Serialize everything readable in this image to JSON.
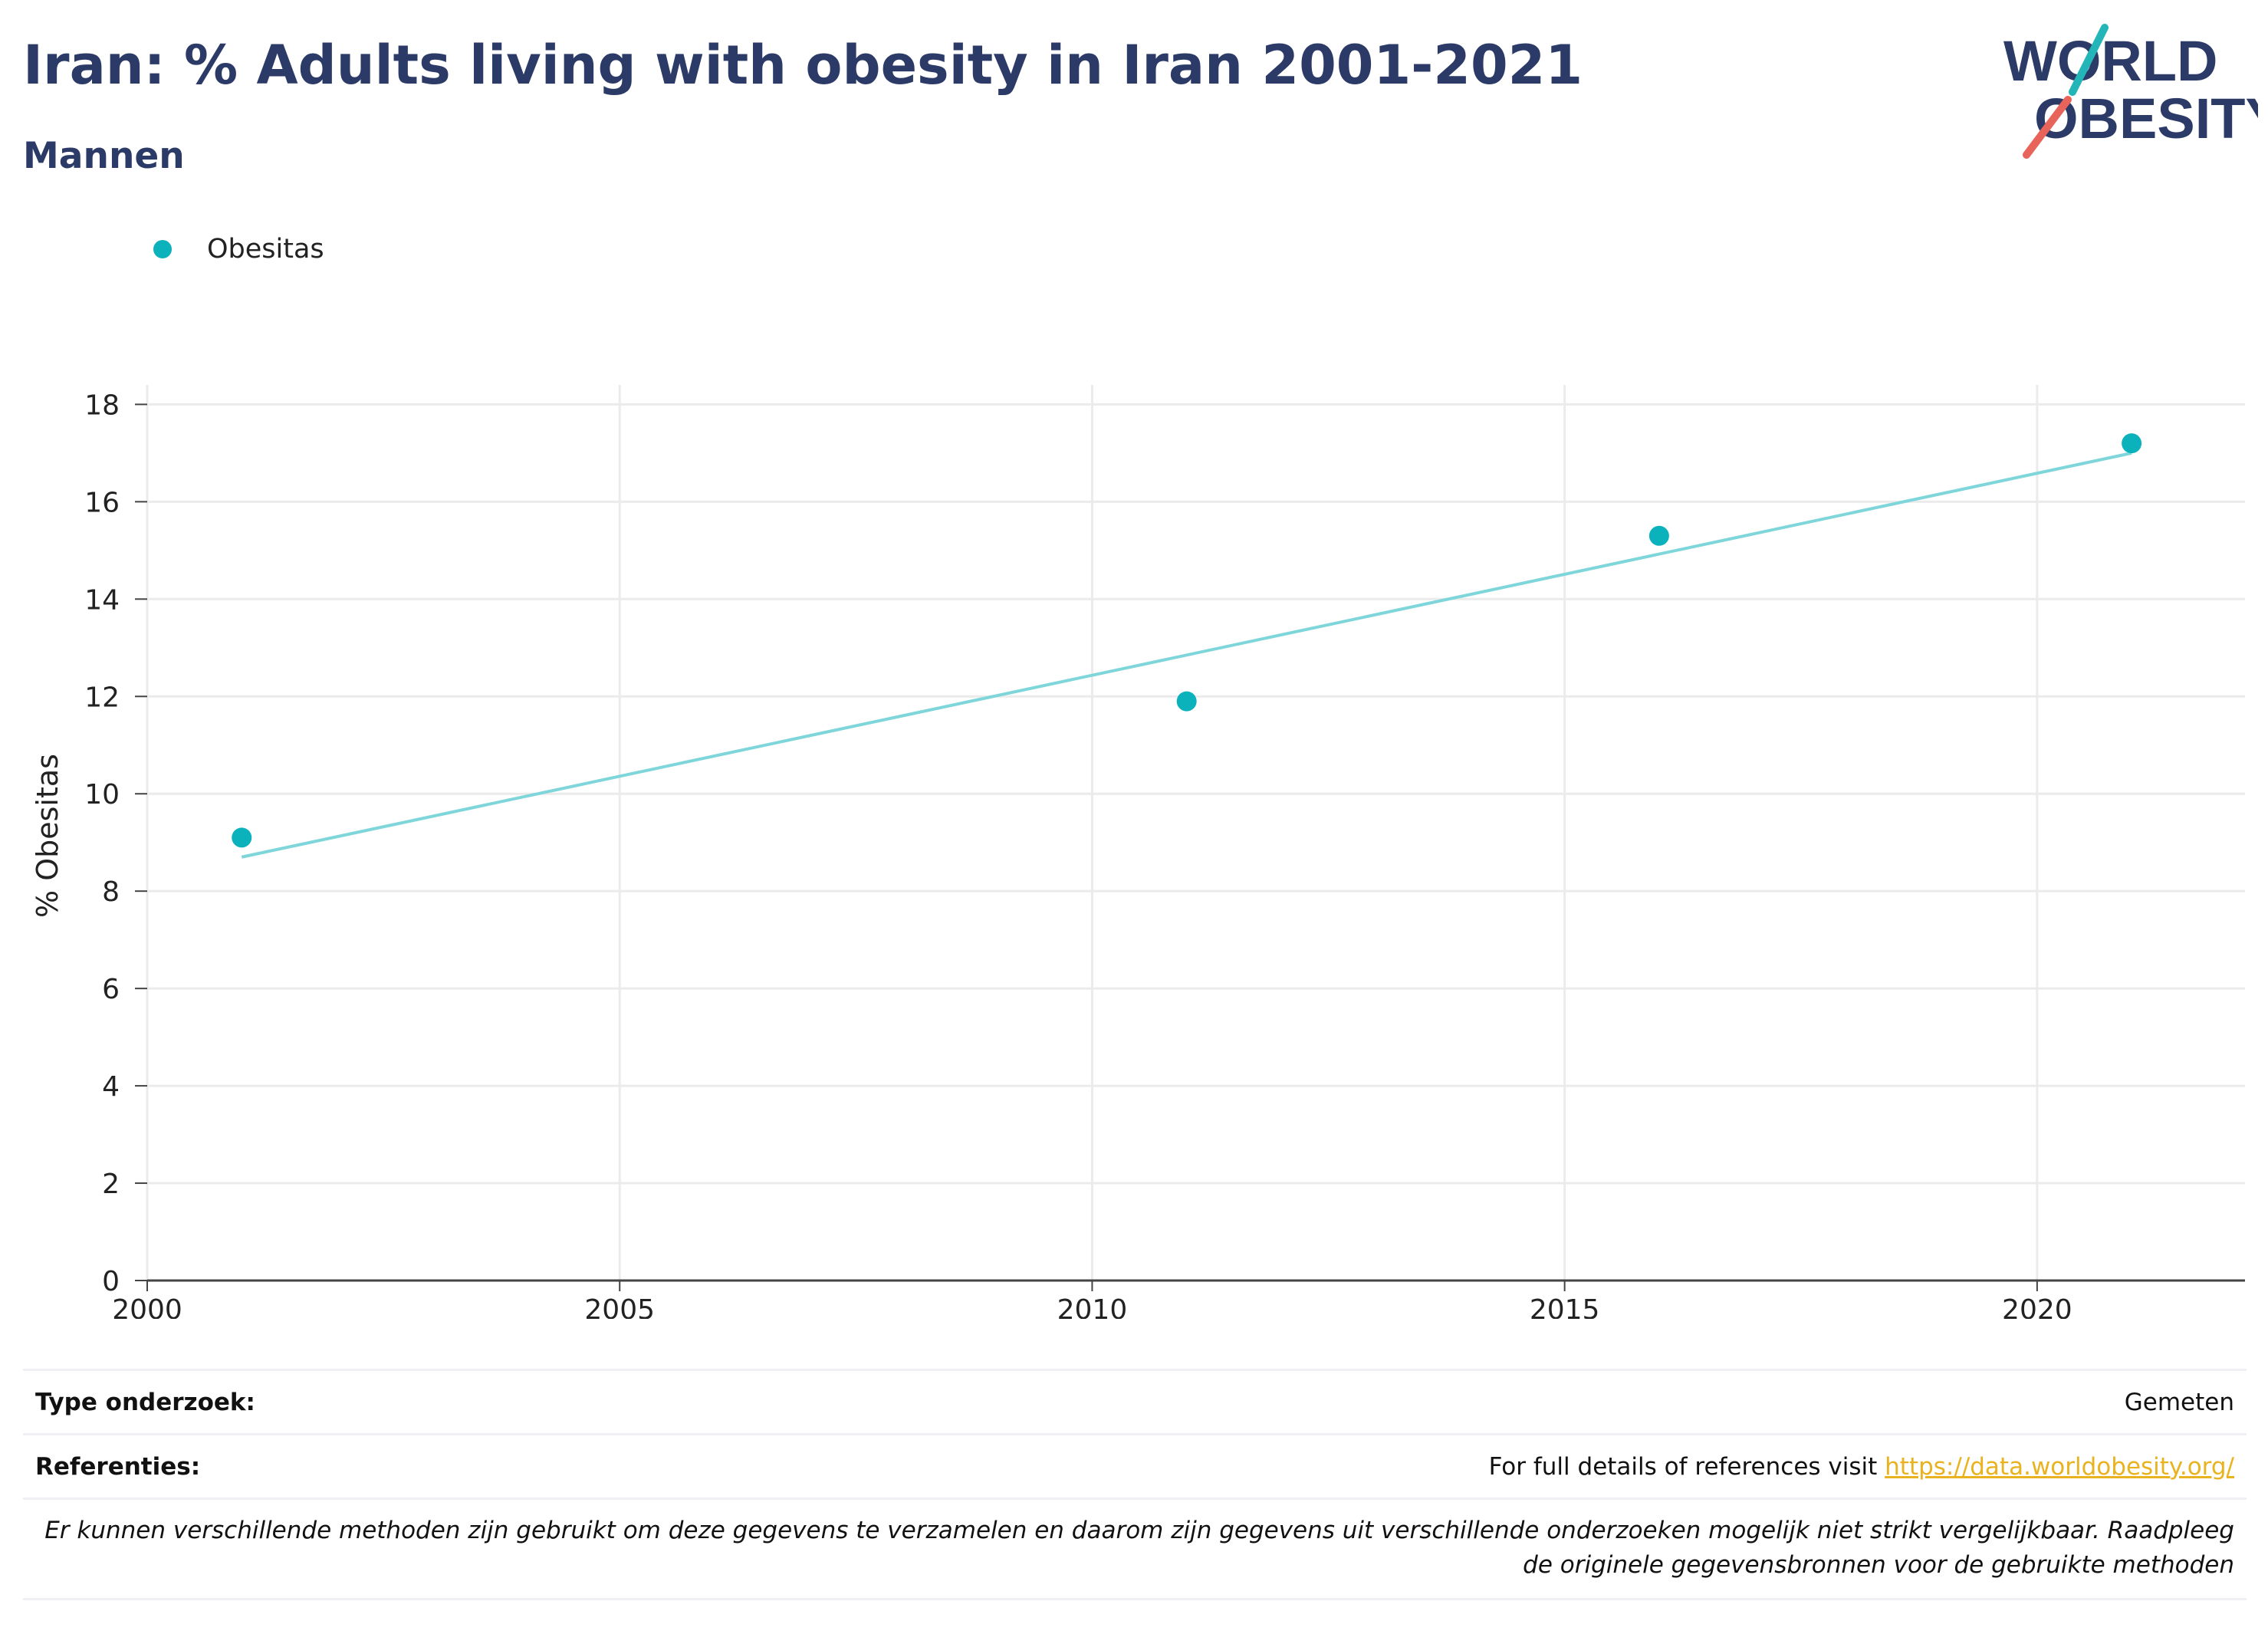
{
  "header": {
    "title": "Iran: % Adults living with obesity in Iran 2001-2021",
    "subtitle": "Mannen"
  },
  "logo": {
    "line1": "WORLD",
    "line2": "OBESITY",
    "accent_teal": "#24b5b8",
    "accent_red": "#e8645a",
    "text_color": "#2b3a67"
  },
  "legend": {
    "label": "Obesitas",
    "color": "#0bb2bb"
  },
  "chart_data": {
    "type": "scatter",
    "series": [
      {
        "name": "Obesitas",
        "x": [
          2001,
          2011,
          2016,
          2021
        ],
        "values": [
          9.1,
          11.9,
          15.3,
          17.2
        ],
        "color": "#0bb2bb"
      }
    ],
    "trendline": {
      "x": [
        2001,
        2021
      ],
      "values": [
        8.7,
        17.0
      ],
      "color": "#7fd6da"
    },
    "title": "",
    "xlabel": "",
    "ylabel": "% Obesitas",
    "xlim": [
      2000,
      2022.2
    ],
    "ylim": [
      0,
      18.4
    ],
    "xticks": [
      2000,
      2005,
      2010,
      2015,
      2020
    ],
    "yticks": [
      0,
      2,
      4,
      6,
      8,
      10,
      12,
      14,
      16,
      18
    ],
    "grid": true,
    "legend_position": "top-left"
  },
  "footer": {
    "type_label": "Type onderzoek:",
    "type_value": "Gemeten",
    "ref_label": "Referenties:",
    "ref_prefix": "For full details of references visit",
    "ref_link": "https://data.worldobesity.org/",
    "note_line1": "Er kunnen verschillende methoden zijn gebruikt om deze gegevens te verzamelen en daarom zijn gegevens uit verschillende onderzoeken mogelijk niet strikt vergelijkbaar. Raadpleeg",
    "note_line2": "de originele gegevensbronnen voor de gebruikte methoden"
  }
}
